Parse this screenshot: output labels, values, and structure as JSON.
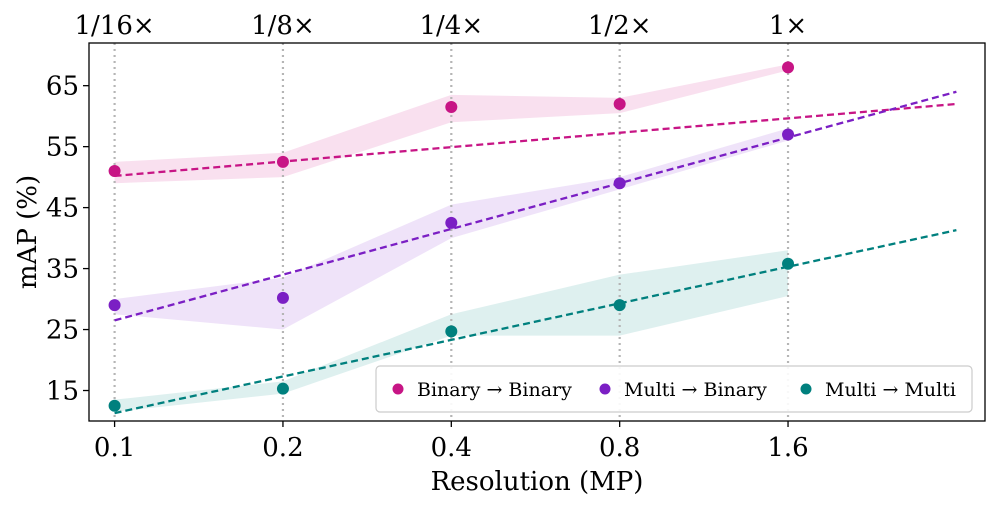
{
  "chart_data": {
    "type": "scatter",
    "title": "",
    "xlabel": "Resolution (MP)",
    "ylabel": "mAP (%)",
    "x_scale": "log2",
    "xlim": [
      0.09,
      3.6
    ],
    "ylim": [
      10,
      72
    ],
    "x_ticks": [
      0.1,
      0.2,
      0.4,
      0.8,
      1.6
    ],
    "x_tick_labels": [
      "0.1",
      "0.2",
      "0.4",
      "0.8",
      "1.6"
    ],
    "y_ticks": [
      15,
      25,
      35,
      45,
      55,
      65
    ],
    "y_tick_labels": [
      "15",
      "25",
      "35",
      "45",
      "55",
      "65"
    ],
    "top_tick_labels": [
      "1/16×",
      "1/8×",
      "1/4×",
      "1/2×",
      "1×"
    ],
    "vertical_gridlines": true,
    "legend_position": "lower-right",
    "series": [
      {
        "name": "Binary → Binary",
        "color": "#c71585",
        "fill_color": "#f7d6ea",
        "x": [
          0.1,
          0.2,
          0.4,
          0.8,
          1.6
        ],
        "values": [
          51.0,
          52.5,
          61.5,
          62.0,
          68.0
        ],
        "band_upper": [
          52.5,
          54.0,
          63.5,
          63.0,
          68.5
        ],
        "band_lower": [
          49.0,
          50.0,
          59.0,
          60.5,
          67.5
        ],
        "trend_x": [
          0.1,
          3.2
        ],
        "trend_y": [
          50.2,
          62.0
        ]
      },
      {
        "name": "Multi → Binary",
        "color": "#7b1fc4",
        "fill_color": "#ead9f7",
        "x": [
          0.1,
          0.2,
          0.4,
          0.8,
          1.6
        ],
        "values": [
          29.0,
          30.2,
          42.5,
          49.0,
          57.0
        ],
        "band_upper": [
          30.0,
          33.5,
          45.5,
          50.0,
          58.0
        ],
        "band_lower": [
          27.5,
          25.0,
          40.0,
          48.0,
          56.0
        ],
        "trend_x": [
          0.1,
          3.2
        ],
        "trend_y": [
          26.5,
          64.0
        ]
      },
      {
        "name": "Multi → Multi",
        "color": "#00807e",
        "fill_color": "#d3ebe9",
        "x": [
          0.1,
          0.2,
          0.4,
          0.8,
          1.6
        ],
        "values": [
          12.5,
          15.3,
          24.7,
          29.0,
          35.8
        ],
        "band_upper": [
          13.5,
          16.5,
          27.5,
          34.0,
          38.0
        ],
        "band_lower": [
          11.5,
          14.5,
          24.0,
          24.0,
          30.5
        ],
        "trend_x": [
          0.1,
          3.2
        ],
        "trend_y": [
          11.3,
          41.3
        ]
      }
    ]
  }
}
